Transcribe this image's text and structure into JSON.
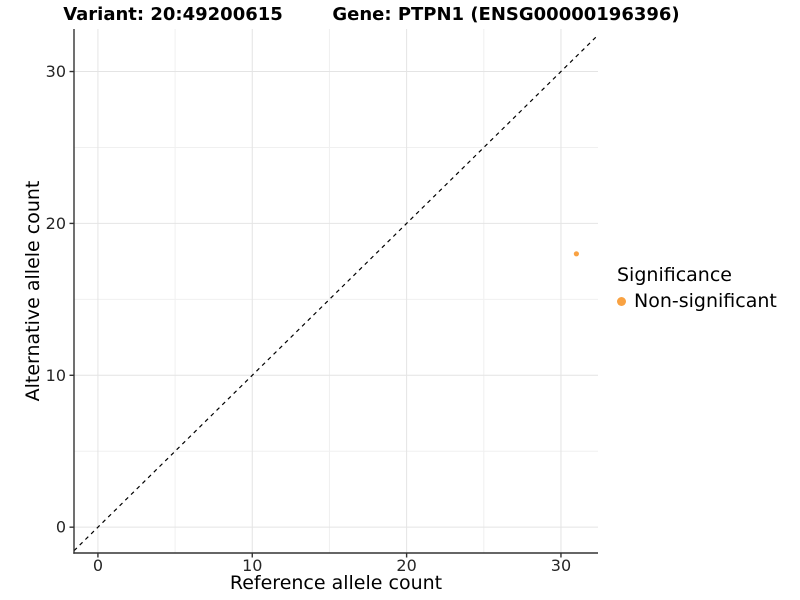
{
  "titles": {
    "variant": "Variant: 20:49200615",
    "gene": "Gene: PTPN1 (ENSG00000196396)"
  },
  "axes": {
    "x_label": "Reference allele count",
    "y_label": "Alternative allele count"
  },
  "legend": {
    "title": "Significance",
    "items": [
      {
        "label": "Non-significant",
        "color": "#F9A242"
      }
    ]
  },
  "chart_data": {
    "type": "scatter",
    "title": "Variant: 20:49200615 / Gene: PTPN1 (ENSG00000196396)",
    "xlabel": "Reference allele count",
    "ylabel": "Alternative allele count",
    "xlim": [
      -1.55,
      32.4
    ],
    "ylim": [
      -1.7,
      32.8
    ],
    "x_ticks": [
      0,
      10,
      20,
      30
    ],
    "y_ticks": [
      0,
      10,
      20,
      30
    ],
    "x_minor_gridlines": [
      5,
      15,
      25
    ],
    "y_minor_gridlines": [
      5,
      15,
      25
    ],
    "grid": "major and minor gridlines, light gray on white panel",
    "legend_position": "right, vertically centered",
    "series": [
      {
        "name": "Non-significant",
        "color": "#F9A242",
        "marker": "circle",
        "marker_radius": 2.6,
        "points": [
          {
            "x": 31,
            "y": 18
          }
        ]
      }
    ],
    "reference_line": {
      "type": "identity y = x",
      "style": "dashed",
      "color": "#000000"
    }
  },
  "colors": {
    "background": "#FFFFFF",
    "point": "#F9A242",
    "grid_major": "#E4E4E4",
    "grid_minor": "#F0F0F0",
    "axis_line": "#333333",
    "tick_text": "#262626",
    "label_text": "#000000",
    "reference_line": "#000000"
  }
}
